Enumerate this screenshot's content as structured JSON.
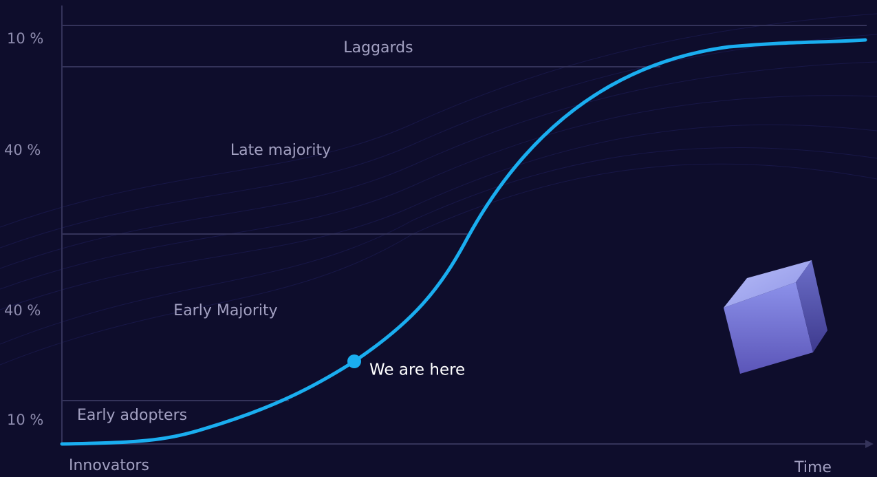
{
  "share_labels": [
    "10 %",
    "40 %",
    "40 %",
    "10 %"
  ],
  "segments": [
    "Laggards",
    "Late majority",
    "Early Majority",
    "Early adopters",
    "Innovators"
  ],
  "x_axis_label": "Time",
  "marker_label": "We are here"
}
